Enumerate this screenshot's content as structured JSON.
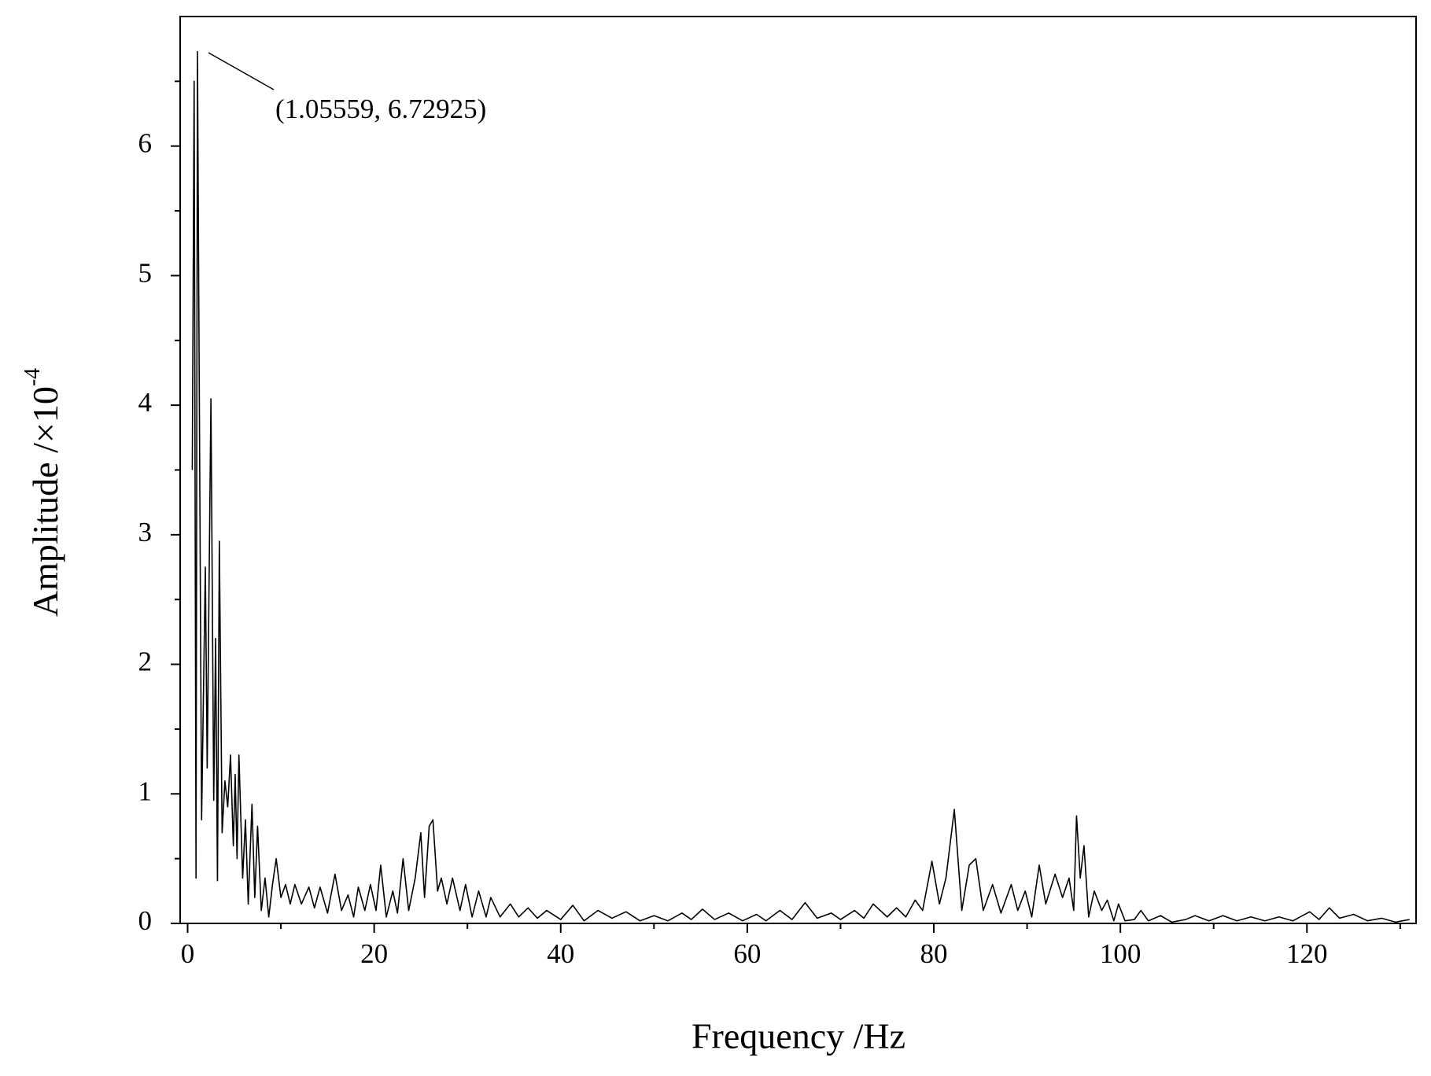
{
  "chart_data": {
    "type": "line",
    "x_label": "Frequency /Hz",
    "y_label": {
      "text": "Amplitude /×10",
      "superscript": "-4"
    },
    "annotation": "(1.05559, 6.72925)",
    "xlim": [
      -0.8,
      131.7
    ],
    "ylim": [
      0,
      7
    ],
    "xticks": [
      0,
      20,
      40,
      60,
      80,
      100,
      120
    ],
    "yticks": [
      0,
      1,
      2,
      3,
      4,
      5,
      6
    ],
    "xminorticks": [
      10,
      30,
      50,
      70,
      90,
      110,
      130
    ],
    "yminorticks": [
      0.5,
      1.5,
      2.5,
      3.5,
      4.5,
      5.5,
      6.5
    ],
    "series": [
      {
        "color": "#000000",
        "x": [
          0.5,
          0.7,
          0.9,
          1.05559,
          1.5,
          1.9,
          2.1,
          2.5,
          2.8,
          3.0,
          3.2,
          3.4,
          3.7,
          4.0,
          4.3,
          4.6,
          4.9,
          5.1,
          5.3,
          5.5,
          5.9,
          6.2,
          6.5,
          6.9,
          7.2,
          7.5,
          7.9,
          8.3,
          8.7,
          9.1,
          9.5,
          10,
          10.5,
          11,
          11.5,
          12.2,
          13,
          13.6,
          14.2,
          15,
          15.8,
          16.5,
          17.2,
          17.8,
          18.3,
          19,
          19.6,
          20.2,
          20.7,
          21.3,
          22,
          22.5,
          23.1,
          23.7,
          24.4,
          25,
          25.4,
          25.9,
          26.3,
          26.8,
          27.2,
          27.8,
          28.4,
          29.2,
          29.8,
          30.5,
          31.2,
          32,
          32.5,
          33.5,
          34.6,
          35.5,
          36.5,
          37.5,
          38.5,
          40,
          41.3,
          42.5,
          44,
          45.5,
          47,
          48.5,
          50,
          51.5,
          53,
          54,
          55.2,
          56.5,
          58,
          59.5,
          61,
          62,
          63.5,
          64.8,
          66.2,
          67.5,
          69,
          70,
          71.5,
          72.5,
          73.5,
          75,
          76,
          77,
          78,
          78.8,
          79.8,
          80.6,
          81.3,
          82.2,
          83,
          83.8,
          84.5,
          85.3,
          86.3,
          87.2,
          88.3,
          89,
          89.8,
          90.5,
          91.3,
          92,
          93,
          93.8,
          94.5,
          95,
          95.3,
          95.7,
          96.1,
          96.6,
          97.2,
          98,
          98.6,
          99.3,
          99.8,
          100.5,
          101.5,
          102.2,
          103,
          104.3,
          105.5,
          107,
          108,
          109.5,
          111,
          112.5,
          114,
          115.5,
          117,
          118.5,
          120.3,
          121.3,
          122.4,
          123.5,
          125,
          126.5,
          128,
          129.5,
          131
        ],
        "values": [
          3.5,
          6.5,
          0.35,
          6.72925,
          0.8,
          2.75,
          1.2,
          4.05,
          0.95,
          2.2,
          0.33,
          2.95,
          0.7,
          1.1,
          0.9,
          1.3,
          0.6,
          1.15,
          0.5,
          1.3,
          0.35,
          0.8,
          0.15,
          0.92,
          0.2,
          0.75,
          0.1,
          0.35,
          0.05,
          0.3,
          0.5,
          0.2,
          0.3,
          0.15,
          0.3,
          0.15,
          0.28,
          0.12,
          0.28,
          0.08,
          0.38,
          0.1,
          0.22,
          0.05,
          0.28,
          0.1,
          0.3,
          0.1,
          0.45,
          0.05,
          0.25,
          0.08,
          0.5,
          0.1,
          0.35,
          0.7,
          0.2,
          0.75,
          0.8,
          0.25,
          0.35,
          0.15,
          0.35,
          0.1,
          0.3,
          0.05,
          0.25,
          0.05,
          0.2,
          0.05,
          0.15,
          0.05,
          0.12,
          0.04,
          0.1,
          0.03,
          0.14,
          0.02,
          0.1,
          0.04,
          0.09,
          0.02,
          0.06,
          0.02,
          0.08,
          0.03,
          0.11,
          0.03,
          0.08,
          0.02,
          0.07,
          0.02,
          0.1,
          0.03,
          0.16,
          0.04,
          0.08,
          0.03,
          0.1,
          0.04,
          0.15,
          0.05,
          0.12,
          0.05,
          0.18,
          0.1,
          0.48,
          0.15,
          0.35,
          0.88,
          0.1,
          0.45,
          0.5,
          0.1,
          0.3,
          0.08,
          0.3,
          0.1,
          0.25,
          0.05,
          0.45,
          0.15,
          0.38,
          0.2,
          0.35,
          0.1,
          0.83,
          0.35,
          0.6,
          0.05,
          0.25,
          0.1,
          0.18,
          0.02,
          0.15,
          0.02,
          0.03,
          0.1,
          0.02,
          0.06,
          0.01,
          0.03,
          0.06,
          0.02,
          0.06,
          0.02,
          0.05,
          0.02,
          0.05,
          0.02,
          0.09,
          0.03,
          0.12,
          0.04,
          0.07,
          0.02,
          0.04,
          0.01,
          0.03
        ]
      }
    ]
  }
}
